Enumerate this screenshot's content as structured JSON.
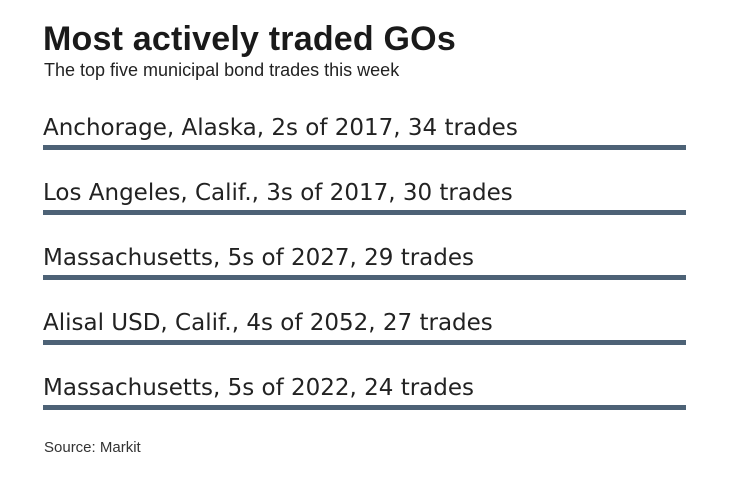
{
  "chart_data": {
    "type": "bar",
    "title": "Most actively traded GOs",
    "subtitle": "The top five municipal bond trades this week",
    "categories": [
      "Anchorage, Alaska, 2s of 2017, 34 trades",
      "Los Angeles, Calif., 3s of 2017, 30 trades",
      "Massachusetts, 5s of 2027, 29 trades",
      "Alisal USD, Calif., 4s of 2052, 27 trades",
      "Massachusetts, 5s of 2022, 24 trades"
    ],
    "values": [
      34,
      30,
      29,
      27,
      24
    ],
    "bar_color": "#4d6276",
    "source": "Source: Markit"
  }
}
